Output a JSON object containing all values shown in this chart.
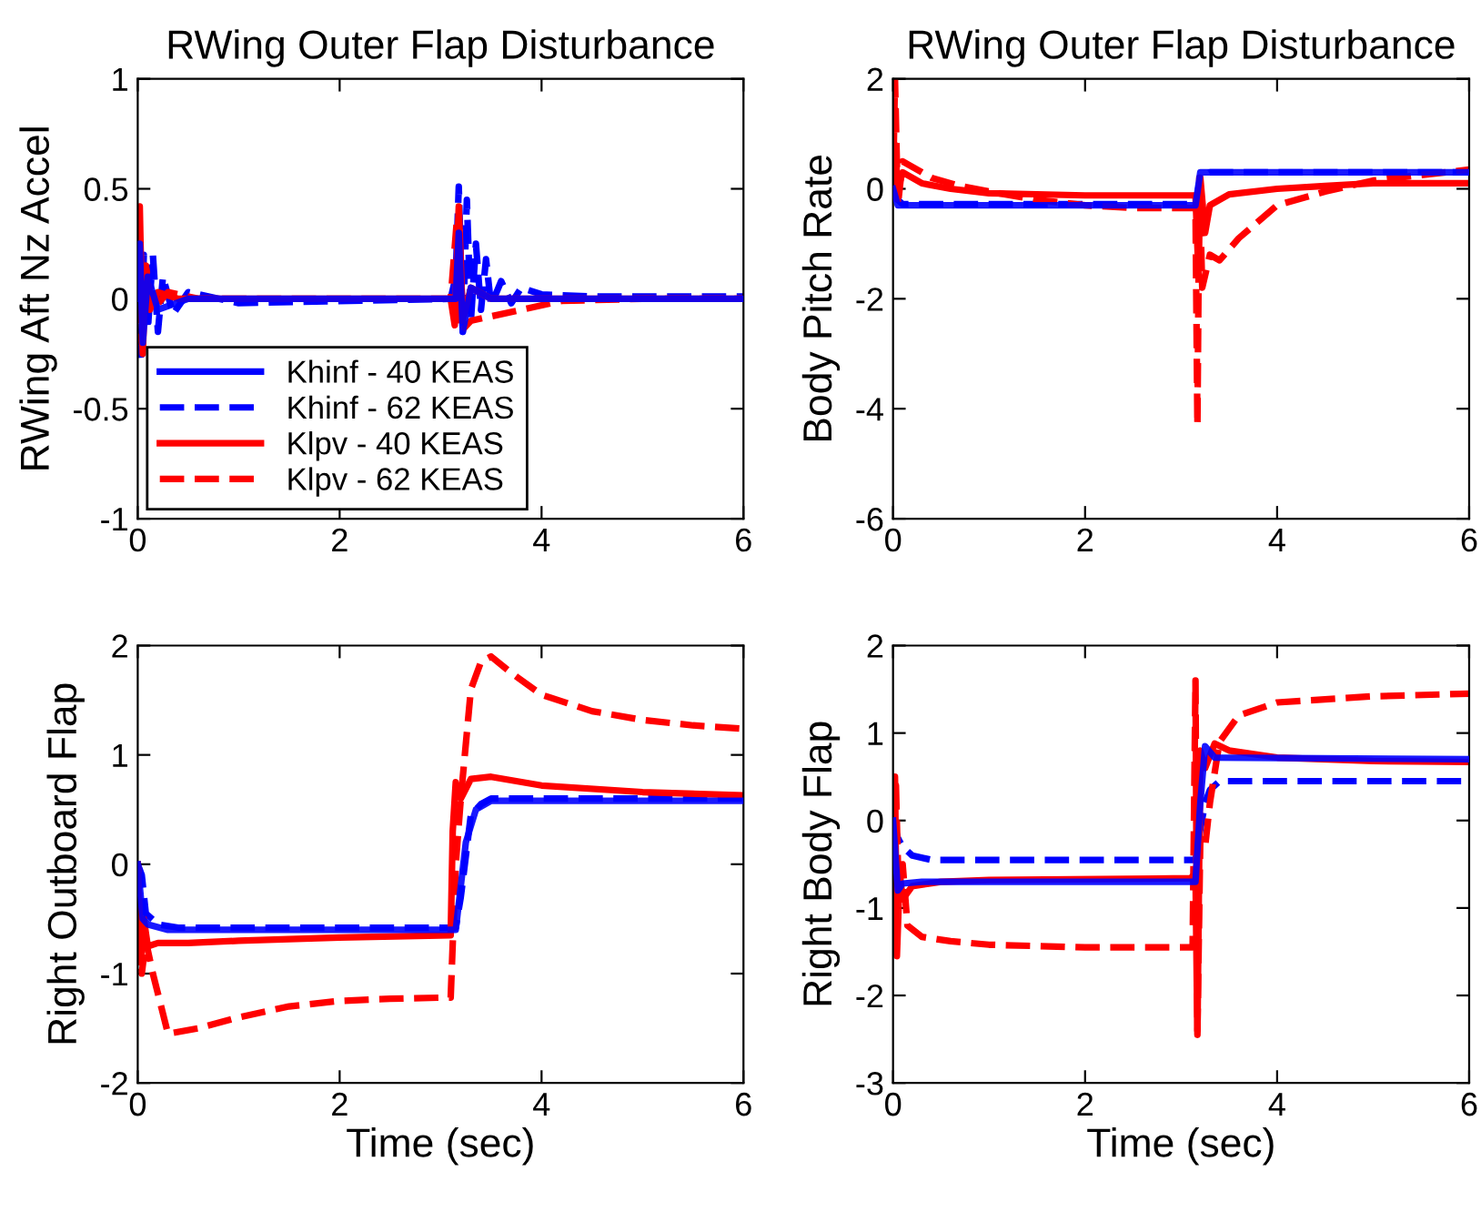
{
  "chart_data": [
    {
      "type": "line",
      "title": "RWing Outer Flap Disturbance",
      "ylabel": "RWing Aft Nz Accel",
      "xlim": [
        0,
        6
      ],
      "xticks": [
        0,
        2,
        4,
        6
      ],
      "ylim": [
        -1,
        1
      ],
      "yticks": [
        -1,
        -0.5,
        0,
        0.5,
        1
      ],
      "grid": false,
      "legend": "bottom left",
      "series": [
        {
          "name": "Khinf - 40 KEAS",
          "color": "#0000ff",
          "line_style": "solid",
          "x": [
            0,
            0.02,
            0.05,
            0.1,
            0.2,
            0.5,
            3.15,
            3.18,
            3.22,
            3.3,
            3.5,
            6
          ],
          "values": [
            0,
            0.25,
            -0.2,
            0.1,
            -0.05,
            0,
            0,
            0.3,
            -0.15,
            0.05,
            0,
            0
          ]
        },
        {
          "name": "Khinf - 62 KEAS",
          "color": "#0000ff",
          "line_style": "dashed",
          "x": [
            0,
            0.03,
            0.06,
            0.1,
            0.15,
            0.2,
            0.25,
            0.35,
            0.5,
            1,
            3.1,
            3.15,
            3.18,
            3.22,
            3.26,
            3.3,
            3.35,
            3.4,
            3.45,
            3.5,
            3.6,
            3.7,
            3.8,
            4,
            4.5,
            6
          ],
          "values": [
            0,
            -0.27,
            0.2,
            -0.14,
            0.2,
            -0.15,
            0.1,
            -0.07,
            0.03,
            -0.02,
            0,
            0.1,
            0.51,
            -0.15,
            0.45,
            -0.1,
            0.25,
            -0.05,
            0.18,
            -0.03,
            0.08,
            -0.02,
            0.05,
            0.02,
            0.01,
            0.01
          ]
        },
        {
          "name": "Klpv - 40 KEAS",
          "color": "#ff0000",
          "line_style": "solid",
          "x": [
            0,
            0.02,
            0.05,
            0.08,
            0.12,
            0.2,
            0.4,
            3.1,
            3.14,
            3.18,
            3.22,
            3.3,
            3.5,
            6
          ],
          "values": [
            0,
            0.42,
            -0.25,
            0.15,
            -0.05,
            0.03,
            0,
            0,
            -0.12,
            0.42,
            -0.1,
            0.05,
            0,
            0
          ]
        },
        {
          "name": "Klpv - 62 KEAS",
          "color": "#ff0000",
          "line_style": "dashed",
          "x": [
            0,
            0.04,
            0.08,
            0.15,
            0.3,
            0.6,
            3.1,
            3.16,
            3.2,
            3.3,
            3.5,
            3.8,
            4.2,
            5,
            6
          ],
          "values": [
            0,
            -0.2,
            0.15,
            -0.05,
            0.03,
            0,
            0,
            0.35,
            -0.15,
            -0.1,
            -0.08,
            -0.05,
            -0.01,
            0,
            0
          ]
        }
      ]
    },
    {
      "type": "line",
      "title": "RWing Outer Flap Disturbance",
      "ylabel": "Body Pitch Rate",
      "xlim": [
        0,
        6
      ],
      "xticks": [
        0,
        2,
        4,
        6
      ],
      "ylim": [
        -6,
        2
      ],
      "yticks": [
        -6,
        -4,
        -2,
        0,
        2
      ],
      "grid": false,
      "series": [
        {
          "color": "#0000ff",
          "line_style": "solid",
          "x": [
            0,
            0.05,
            0.1,
            3.15,
            3.2,
            3.25,
            6
          ],
          "values": [
            0,
            -0.3,
            -0.3,
            -0.3,
            0.3,
            0.3,
            0.3
          ]
        },
        {
          "color": "#0000ff",
          "line_style": "dashed",
          "x": [
            0,
            0.05,
            0.1,
            3.15,
            3.2,
            3.3,
            6
          ],
          "values": [
            0,
            -0.2,
            -0.28,
            -0.28,
            0.2,
            0.3,
            0.3
          ]
        },
        {
          "color": "#ff0000",
          "line_style": "solid",
          "x": [
            0,
            0.02,
            0.05,
            0.1,
            0.3,
            0.6,
            1,
            2,
            3.15,
            3.18,
            3.2,
            3.25,
            3.3,
            3.5,
            4,
            4.5,
            5,
            6
          ],
          "values": [
            0,
            0.8,
            0,
            0.3,
            0.1,
            0,
            -0.08,
            -0.12,
            -0.12,
            -1.5,
            0.2,
            -0.8,
            -0.3,
            -0.1,
            0,
            0.05,
            0.1,
            0.1
          ]
        },
        {
          "color": "#ff0000",
          "line_style": "dashed",
          "x": [
            0,
            0.02,
            0.05,
            0.1,
            0.2,
            0.4,
            0.7,
            1,
            1.5,
            2,
            2.5,
            3,
            3.15,
            3.17,
            3.19,
            3.22,
            3.3,
            3.4,
            3.6,
            3.8,
            4,
            4.5,
            5,
            5.5,
            6
          ],
          "values": [
            0,
            2,
            -0.3,
            0.5,
            0.4,
            0.2,
            0.05,
            -0.05,
            -0.2,
            -0.3,
            -0.35,
            -0.35,
            -0.35,
            -4.3,
            0.2,
            -1.8,
            -1.2,
            -1.3,
            -0.9,
            -0.6,
            -0.3,
            -0.05,
            0.15,
            0.25,
            0.35
          ]
        }
      ]
    },
    {
      "type": "line",
      "ylabel": "Right Outboard Flap",
      "xlabel": "Time (sec)",
      "xlim": [
        0,
        6
      ],
      "xticks": [
        0,
        2,
        4,
        6
      ],
      "ylim": [
        -2,
        2
      ],
      "yticks": [
        -2,
        -1,
        0,
        1,
        2
      ],
      "grid": false,
      "series": [
        {
          "color": "#0000ff",
          "line_style": "solid",
          "x": [
            0,
            0.05,
            0.1,
            0.3,
            3.1,
            3.15,
            3.25,
            3.35,
            3.5,
            6
          ],
          "values": [
            0,
            -0.5,
            -0.55,
            -0.6,
            -0.6,
            -0.6,
            0.2,
            0.5,
            0.58,
            0.58
          ]
        },
        {
          "color": "#0000ff",
          "line_style": "dashed",
          "x": [
            0,
            0.04,
            0.08,
            0.2,
            0.4,
            3.15,
            3.2,
            3.3,
            3.4,
            3.5,
            6
          ],
          "values": [
            0,
            -0.1,
            -0.45,
            -0.55,
            -0.58,
            -0.58,
            -0.3,
            0.45,
            0.55,
            0.6,
            0.6
          ]
        },
        {
          "color": "#ff0000",
          "line_style": "solid",
          "x": [
            0,
            0.03,
            0.06,
            0.1,
            0.2,
            0.5,
            1,
            2,
            3.1,
            3.12,
            3.15,
            3.2,
            3.3,
            3.5,
            4,
            5,
            6
          ],
          "values": [
            0,
            -0.9,
            -0.5,
            -0.75,
            -0.72,
            -0.72,
            -0.7,
            -0.67,
            -0.65,
            0.3,
            0.75,
            0.6,
            0.78,
            0.8,
            0.72,
            0.66,
            0.63
          ]
        },
        {
          "color": "#ff0000",
          "line_style": "dashed",
          "x": [
            0,
            0.04,
            0.08,
            0.15,
            0.3,
            0.6,
            1,
            1.5,
            2,
            2.5,
            3,
            3.1,
            3.15,
            3.2,
            3.3,
            3.4,
            3.5,
            3.7,
            4,
            4.5,
            5,
            5.5,
            6
          ],
          "values": [
            0,
            -1,
            -0.7,
            -1,
            -1.55,
            -1.5,
            -1.4,
            -1.3,
            -1.25,
            -1.23,
            -1.22,
            -1.22,
            0,
            0.6,
            1.6,
            1.85,
            1.9,
            1.75,
            1.55,
            1.4,
            1.32,
            1.27,
            1.24
          ]
        }
      ]
    },
    {
      "type": "line",
      "ylabel": "Right Body Flap",
      "xlabel": "Time (sec)",
      "xlim": [
        0,
        6
      ],
      "xticks": [
        0,
        2,
        4,
        6
      ],
      "ylim": [
        -3,
        2
      ],
      "yticks": [
        -3,
        -2,
        -1,
        0,
        1,
        2
      ],
      "grid": false,
      "series": [
        {
          "color": "#0000ff",
          "line_style": "solid",
          "x": [
            0,
            0.05,
            0.1,
            0.3,
            3.15,
            3.2,
            3.25,
            3.35,
            6
          ],
          "values": [
            0,
            -0.8,
            -0.72,
            -0.7,
            -0.7,
            0.2,
            0.85,
            0.72,
            0.7
          ]
        },
        {
          "color": "#0000ff",
          "line_style": "dashed",
          "x": [
            0,
            0.05,
            0.1,
            0.2,
            0.4,
            3.15,
            3.2,
            3.25,
            3.3,
            3.4,
            3.6,
            6
          ],
          "values": [
            0,
            -0.2,
            -0.3,
            -0.4,
            -0.45,
            -0.45,
            -0.1,
            0.2,
            0.35,
            0.45,
            0.45,
            0.45
          ]
        },
        {
          "color": "#ff0000",
          "line_style": "solid",
          "x": [
            0,
            0.02,
            0.04,
            0.07,
            0.1,
            0.2,
            0.5,
            1,
            3.1,
            3.15,
            3.17,
            3.2,
            3.25,
            3.35,
            3.5,
            4,
            5,
            6
          ],
          "values": [
            0,
            0.5,
            -1.55,
            -0.6,
            -0.9,
            -0.75,
            -0.7,
            -0.68,
            -0.66,
            -0.6,
            -2.45,
            0.8,
            0.6,
            0.88,
            0.8,
            0.72,
            0.68,
            0.67
          ]
        },
        {
          "color": "#ff0000",
          "line_style": "dashed",
          "x": [
            0,
            0.03,
            0.06,
            0.1,
            0.15,
            0.3,
            0.6,
            1,
            2,
            3,
            3.12,
            3.15,
            3.17,
            3.2,
            3.25,
            3.3,
            3.4,
            3.6,
            4,
            5,
            6
          ],
          "values": [
            0,
            0.4,
            -0.9,
            -0.5,
            -1.2,
            -1.33,
            -1.38,
            -1.42,
            -1.45,
            -1.45,
            -1.45,
            1.6,
            -2.4,
            -0.2,
            -0.3,
            0.2,
            0.9,
            1.2,
            1.35,
            1.42,
            1.45
          ]
        }
      ]
    }
  ]
}
